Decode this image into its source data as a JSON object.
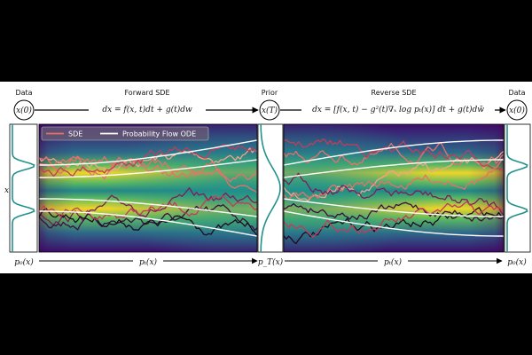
{
  "header": {
    "data_left": "Data",
    "forward_title": "Forward SDE",
    "prior": "Prior",
    "reverse_title": "Reverse SDE",
    "data_right": "Data"
  },
  "states": {
    "x0_left": "x(0)",
    "xT": "x(T)",
    "x0_right": "x(0)"
  },
  "equations": {
    "forward": "dx = f(x, t)dt + g(t)dw",
    "reverse": "dx = [f(x, t) − g²(t)∇ₓ log pₜ(x)] dt + g(t)dw̄"
  },
  "axis": {
    "y_label": "x"
  },
  "bottom": {
    "p0_left": "p₀(x)",
    "pt_forward": "pₜ(x)",
    "pT": "p_T(x)",
    "pt_reverse": "pₜ(x)",
    "p0_right": "p₀(x)"
  },
  "legend": {
    "sde": "SDE",
    "ode": "Probability Flow ODE"
  },
  "colors": {
    "sde_trajectories": [
      "#e8706a",
      "#c23b5c",
      "#7a1f5c",
      "#3b0f3f",
      "#1a0d1f",
      "#f3a58a"
    ],
    "ode_curve": "#ffffff",
    "density_colormap": "viridis"
  }
}
